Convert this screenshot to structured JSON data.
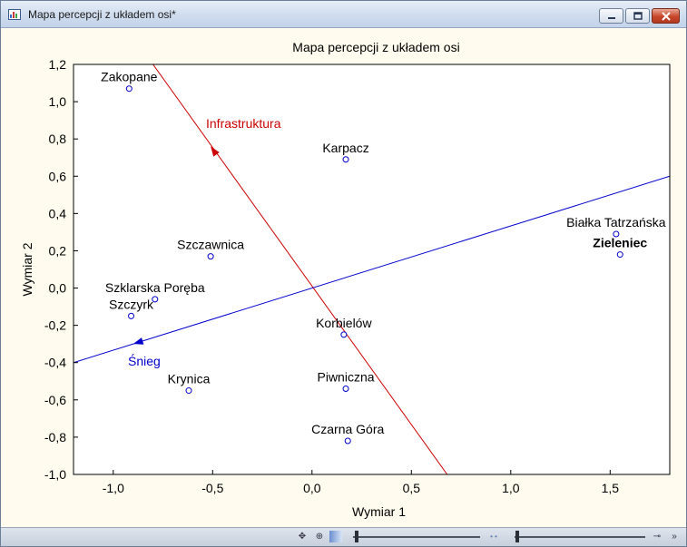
{
  "window": {
    "title": "Mapa percepcji z układem osi*"
  },
  "icons": {
    "app": "chart-app-icon",
    "minimize": "minimize-icon",
    "maximize": "maximize-icon",
    "close": "close-icon"
  },
  "colors": {
    "points": "#0000cc",
    "labels": "#000000",
    "infra_axis": "#cc0000",
    "snow_axis": "#0000cc",
    "plot_bg": "#ffffff",
    "frame_bg": "#fffcef"
  },
  "chart_data": {
    "type": "scatter",
    "title": "Mapa percepcji z układem osi",
    "xlabel": "Wymiar    1",
    "ylabel": "Wymiar    2",
    "xlim": [
      -1.2,
      1.8
    ],
    "ylim": [
      -1.0,
      1.2
    ],
    "xticks": [
      -1.0,
      -0.5,
      0.0,
      0.5,
      1.0,
      1.5
    ],
    "xtick_labels": [
      "-1,0",
      "-0,5",
      "0,0",
      "0,5",
      "1,0",
      "1,5"
    ],
    "yticks": [
      1.2,
      1.0,
      0.8,
      0.6,
      0.4,
      0.2,
      0.0,
      -0.2,
      -0.4,
      -0.6,
      -0.8,
      -1.0
    ],
    "ytick_labels": [
      "1,2",
      "1,0",
      "0,8",
      "0,6",
      "0,4",
      "0,2",
      "0,0",
      "-0,2",
      "-0,4",
      "-0,6",
      "-0,8",
      "-1,0"
    ],
    "grid": false,
    "points": [
      {
        "label": "Zakopane",
        "x": -0.92,
        "y": 1.07
      },
      {
        "label": "Karpacz",
        "x": 0.17,
        "y": 0.69
      },
      {
        "label": "Szczawnica",
        "x": -0.51,
        "y": 0.17
      },
      {
        "label": "Szklarska Poręba",
        "x": -0.79,
        "y": -0.06
      },
      {
        "label": "Szczyrk",
        "x": -0.91,
        "y": -0.15
      },
      {
        "label": "Krynica",
        "x": -0.62,
        "y": -0.55
      },
      {
        "label": "Korbielów",
        "x": 0.16,
        "y": -0.25
      },
      {
        "label": "Piwniczna",
        "x": 0.17,
        "y": -0.54
      },
      {
        "label": "Czarna Góra",
        "x": 0.18,
        "y": -0.82
      },
      {
        "label": "Białka Tatrzańska",
        "x": 1.53,
        "y": 0.29
      },
      {
        "label": "Zieleniec",
        "x": 1.55,
        "y": 0.18
      }
    ],
    "vectors": [
      {
        "name": "Infrastruktura",
        "start": [
          -0.8,
          1.2
        ],
        "end": [
          0.68,
          -1.0
        ],
        "arrow_at": [
          -0.51,
          0.76
        ]
      },
      {
        "name": "Śnieg",
        "start": [
          -1.2,
          -0.4
        ],
        "end": [
          1.8,
          0.6
        ],
        "arrow_at": [
          -0.9,
          -0.3
        ]
      }
    ]
  }
}
